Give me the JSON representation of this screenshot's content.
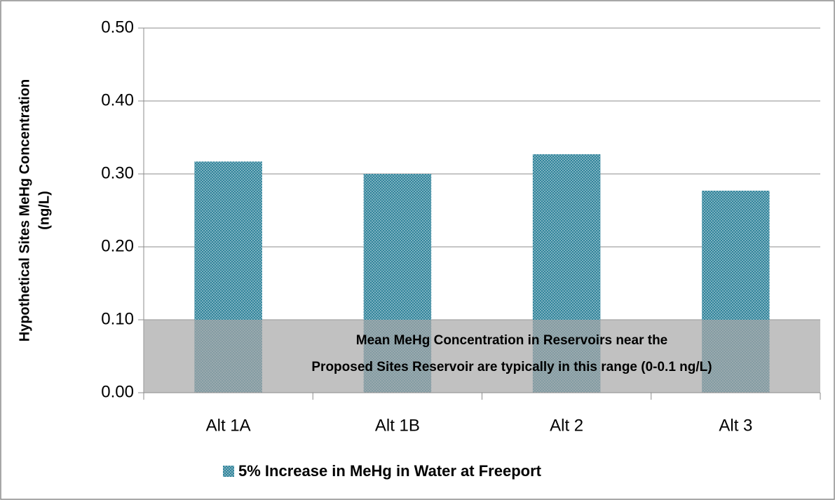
{
  "chart_data": {
    "type": "bar",
    "y_label_lines": [
      "Hypothetical Sites MeHg Concentration",
      "(ng/L)"
    ],
    "categories": [
      "Alt 1A",
      "Alt 1B",
      "Alt 2",
      "Alt 3"
    ],
    "series": [
      {
        "name": "5% Increase in MeHg in Water at Freeport",
        "color": "#31849b",
        "values": [
          0.317,
          0.3,
          0.327,
          0.277
        ]
      }
    ],
    "ylim": [
      0,
      0.5
    ],
    "yticks": [
      {
        "value": 0,
        "label": "0.00"
      },
      {
        "value": 0.1,
        "label": "0.10"
      },
      {
        "value": 0.2,
        "label": "0.20"
      },
      {
        "value": 0.3,
        "label": "0.30"
      },
      {
        "value": 0.4,
        "label": "0.40"
      },
      {
        "value": 0.5,
        "label": "0.50"
      }
    ],
    "grid": true,
    "band": [
      0,
      0.1
    ],
    "band_color": "#a6a6a6",
    "band_text": [
      "Mean MeHg Concentration in Reservoirs near the",
      "Proposed Sites Reservoir are typically in this range (0-0.1 ng/L)"
    ],
    "legend": "bottom"
  }
}
